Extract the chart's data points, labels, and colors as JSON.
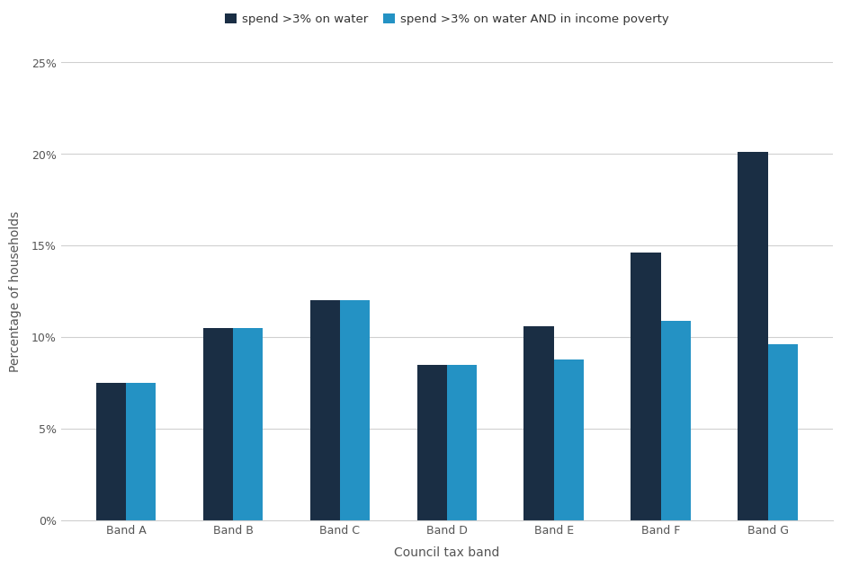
{
  "categories": [
    "Band A",
    "Band B",
    "Band C",
    "Band D",
    "Band E",
    "Band F",
    "Band G"
  ],
  "series1_label": "spend >3% on water",
  "series2_label": "spend >3% on water AND in income poverty",
  "series1_values": [
    7.5,
    10.5,
    12.0,
    8.5,
    10.6,
    14.6,
    20.1
  ],
  "series2_values": [
    7.5,
    10.5,
    12.0,
    8.5,
    8.8,
    10.9,
    9.6
  ],
  "series1_color": "#1a2e44",
  "series2_color": "#2492c4",
  "xlabel": "Council tax band",
  "ylabel": "Percentage of households",
  "ylim": [
    0,
    25
  ],
  "yticks": [
    0,
    5,
    10,
    15,
    20,
    25
  ],
  "ytick_labels": [
    "0%",
    "5%",
    "10%",
    "15%",
    "20%",
    "25%"
  ],
  "background_color": "#ffffff",
  "grid_color": "#d0d0d0",
  "bar_width": 0.28,
  "axis_label_fontsize": 10,
  "tick_fontsize": 9,
  "legend_fontsize": 9.5
}
